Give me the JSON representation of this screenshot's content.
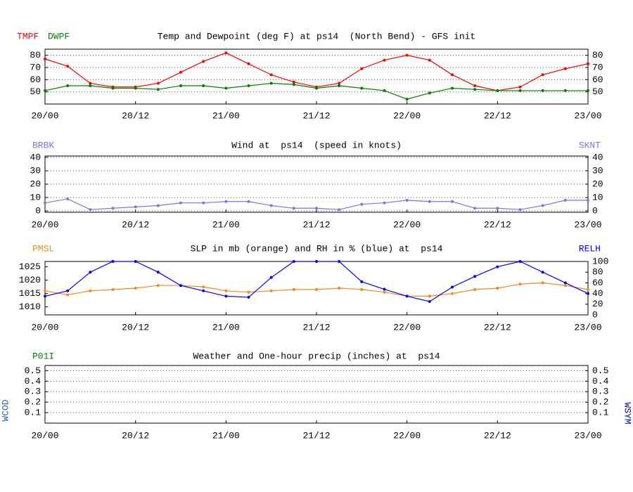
{
  "chart_data": [
    {
      "type": "line",
      "title": "Temp and Dewpoint (deg F) at ps14  (North Bend) - GFS init",
      "x": [
        0,
        3,
        6,
        9,
        12,
        15,
        18,
        21,
        24,
        27,
        30,
        33,
        36,
        39,
        42,
        45,
        48,
        51,
        54,
        57,
        60,
        63,
        66,
        69,
        72
      ],
      "xlim": [
        0,
        72
      ],
      "xticks": [
        {
          "value": 0,
          "label": "20/00"
        },
        {
          "value": 12,
          "label": "20/12"
        },
        {
          "value": 24,
          "label": "21/00"
        },
        {
          "value": 36,
          "label": "21/12"
        },
        {
          "value": 48,
          "label": "22/00"
        },
        {
          "value": 60,
          "label": "22/12"
        },
        {
          "value": 72,
          "label": "23/00"
        }
      ],
      "ylim": [
        40,
        85
      ],
      "yticks": [
        50,
        60,
        70,
        80
      ],
      "y2lim": [
        40,
        85
      ],
      "y2ticks": [
        50,
        60,
        70,
        80
      ],
      "grid": true,
      "series": [
        {
          "name": "TMPF",
          "color": "#ff0000",
          "values": [
            77,
            71,
            57,
            54,
            54,
            57,
            66,
            75,
            82,
            73,
            64,
            58,
            54,
            57,
            69,
            76,
            80,
            76,
            64,
            55,
            51,
            54,
            64,
            69,
            73
          ]
        },
        {
          "name": "DWPF",
          "color": "#008000",
          "values": [
            51,
            55,
            55,
            53,
            53,
            52,
            55,
            55,
            53,
            55,
            57,
            56,
            53,
            55,
            53,
            51,
            44,
            49,
            53,
            52,
            51,
            51,
            51,
            51,
            51
          ]
        }
      ]
    },
    {
      "type": "line",
      "title": "Wind at  ps14  (speed in knots)",
      "labels": [
        {
          "text": "BRBK",
          "color": "#8870e0"
        }
      ],
      "x": [
        0,
        3,
        6,
        9,
        12,
        15,
        18,
        21,
        24,
        27,
        30,
        33,
        36,
        39,
        42,
        45,
        48,
        51,
        54,
        57,
        60,
        63,
        66,
        69,
        72
      ],
      "xlim": [
        0,
        72
      ],
      "xticks": [
        {
          "value": 0,
          "label": "20/00"
        },
        {
          "value": 12,
          "label": "20/12"
        },
        {
          "value": 24,
          "label": "21/00"
        },
        {
          "value": 36,
          "label": "21/12"
        },
        {
          "value": 48,
          "label": "22/00"
        },
        {
          "value": 60,
          "label": "22/12"
        },
        {
          "value": 72,
          "label": "23/00"
        }
      ],
      "ylim": [
        -1,
        41
      ],
      "yticks": [
        0,
        10,
        20,
        30,
        40
      ],
      "y2lim": [
        -1,
        41
      ],
      "y2ticks": [
        0,
        10,
        20,
        30,
        40
      ],
      "grid": true,
      "series": [
        {
          "name": "SKNT",
          "color": "#8870e0",
          "axis": "y2",
          "values": [
            6,
            9,
            1,
            2,
            3,
            4,
            6,
            6,
            7,
            7,
            4,
            2,
            2,
            1,
            5,
            6,
            8,
            7,
            7,
            2,
            2,
            1,
            4,
            8,
            8
          ]
        }
      ]
    },
    {
      "type": "line",
      "title": "SLP in mb (orange) and RH in % (blue) at  ps14",
      "x": [
        0,
        3,
        6,
        9,
        12,
        15,
        18,
        21,
        24,
        27,
        30,
        33,
        36,
        39,
        42,
        45,
        48,
        51,
        54,
        57,
        60,
        63,
        66,
        69,
        72
      ],
      "xlim": [
        0,
        72
      ],
      "xticks": [
        {
          "value": 0,
          "label": "20/00"
        },
        {
          "value": 12,
          "label": "20/12"
        },
        {
          "value": 24,
          "label": "21/00"
        },
        {
          "value": 36,
          "label": "21/12"
        },
        {
          "value": 48,
          "label": "22/00"
        },
        {
          "value": 60,
          "label": "22/12"
        },
        {
          "value": 72,
          "label": "23/00"
        }
      ],
      "ylim": [
        1007,
        1027
      ],
      "yticks": [
        1010,
        1015,
        1020,
        1025
      ],
      "y2lim": [
        0,
        100
      ],
      "y2ticks": [
        0,
        20,
        40,
        60,
        80,
        100
      ],
      "grid": false,
      "series": [
        {
          "name": "PMSL",
          "color": "#f08c1e",
          "values": [
            1016,
            1014.5,
            1016,
            1016.5,
            1017,
            1018,
            1018,
            1017.5,
            1016,
            1015.5,
            1016,
            1016.5,
            1016.5,
            1017,
            1016.5,
            1015.5,
            1014,
            1014,
            1015,
            1016.5,
            1017,
            1018.5,
            1019,
            1018,
            1016.5
          ]
        },
        {
          "name": "RELH",
          "color": "#0000ff",
          "axis": "y2",
          "values": [
            35,
            45,
            80,
            100,
            100,
            80,
            55,
            45,
            35,
            33,
            70,
            100,
            100,
            100,
            62,
            48,
            35,
            25,
            52,
            72,
            90,
            100,
            80,
            60,
            40
          ]
        }
      ]
    },
    {
      "type": "line",
      "title": "Weather and One-hour precip (inches) at  ps14",
      "labels": [
        {
          "text": "P01I",
          "color": "#008000"
        },
        {
          "text": "WCOD",
          "color": "#3060b0"
        },
        {
          "text": "WSYM",
          "color": "#0000c0"
        }
      ],
      "xlim": [
        0,
        72
      ],
      "xticks": [
        {
          "value": 0,
          "label": "20/00"
        },
        {
          "value": 12,
          "label": "20/12"
        },
        {
          "value": 24,
          "label": "21/00"
        },
        {
          "value": 36,
          "label": "21/12"
        },
        {
          "value": 48,
          "label": "22/00"
        },
        {
          "value": 60,
          "label": "22/12"
        },
        {
          "value": 72,
          "label": "23/00"
        }
      ],
      "ylim": [
        0,
        0.55
      ],
      "yticks": [
        0.1,
        0.2,
        0.3,
        0.4,
        0.5
      ],
      "y2lim": [
        0,
        0.55
      ],
      "y2ticks": [
        0.1,
        0.2,
        0.3,
        0.4,
        0.5
      ],
      "grid": true,
      "series": []
    }
  ]
}
